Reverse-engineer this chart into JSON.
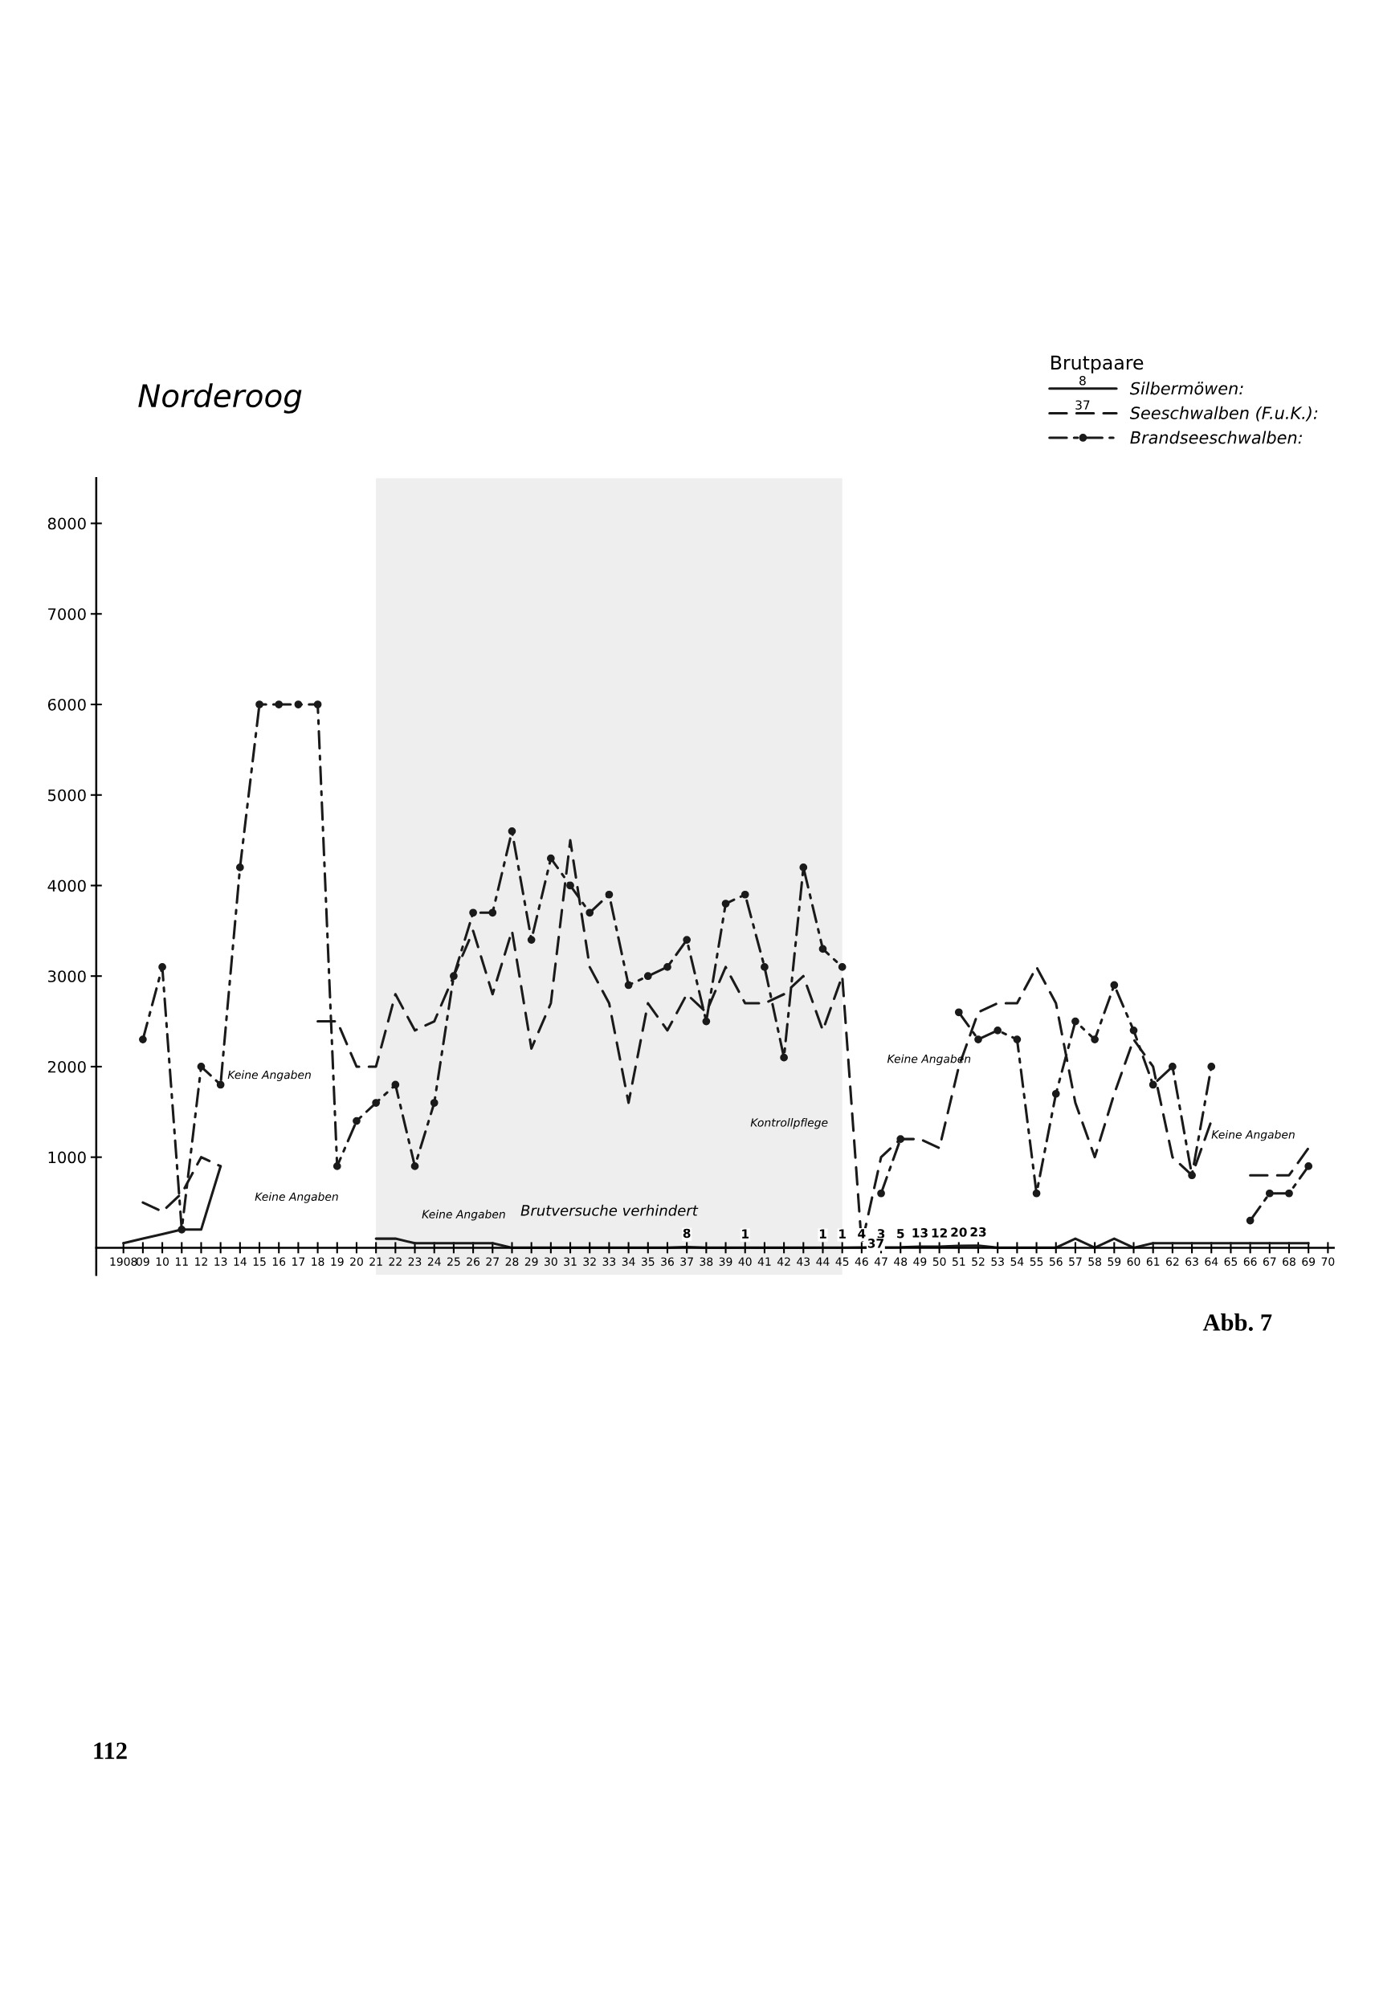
{
  "chart_data": {
    "type": "line",
    "title": "Norderoog",
    "legend_title": "Brutpaare",
    "legend": "top right",
    "x": [
      1908,
      1909,
      1910,
      1911,
      1912,
      1913,
      1914,
      1915,
      1916,
      1917,
      1918,
      1919,
      1920,
      1921,
      1922,
      1923,
      1924,
      1925,
      1926,
      1927,
      1928,
      1929,
      1930,
      1931,
      1932,
      1933,
      1934,
      1935,
      1936,
      1937,
      1938,
      1939,
      1940,
      1941,
      1942,
      1943,
      1944,
      1945,
      1946,
      1947,
      1948,
      1949,
      1950,
      1951,
      1952,
      1953,
      1954,
      1955,
      1956,
      1957,
      1958,
      1959,
      1960,
      1961,
      1962,
      1963,
      1964,
      1965,
      1966,
      1967,
      1968,
      1969
    ],
    "series": [
      {
        "name": "Silbermöwen:",
        "color": "#1a1a1a",
        "line_style": "solid",
        "marker": "none",
        "values": [
          50,
          100,
          150,
          200,
          200,
          900,
          null,
          null,
          null,
          null,
          null,
          null,
          null,
          100,
          100,
          50,
          50,
          50,
          50,
          50,
          0,
          0,
          0,
          0,
          0,
          0,
          0,
          0,
          0,
          8,
          0,
          0,
          1,
          0,
          0,
          0,
          1,
          1,
          4,
          3,
          5,
          13,
          12,
          20,
          23,
          0,
          0,
          0,
          0,
          100,
          0,
          100,
          0,
          50,
          50,
          50,
          50,
          50,
          50,
          50,
          50,
          50
        ],
        "value_labels": [
          null,
          null,
          null,
          null,
          null,
          null,
          null,
          null,
          null,
          null,
          null,
          null,
          null,
          null,
          null,
          null,
          null,
          null,
          null,
          null,
          null,
          null,
          null,
          null,
          null,
          null,
          null,
          null,
          null,
          "8",
          null,
          null,
          "1",
          null,
          null,
          null,
          "1",
          "1",
          "4",
          "3",
          "5",
          "13",
          "12",
          "20",
          "23",
          null,
          null,
          null,
          null,
          null,
          null,
          null,
          null,
          null,
          null,
          null,
          null,
          null,
          null,
          null,
          null,
          null
        ]
      },
      {
        "name": "Seeschwalben (F.u.K.):",
        "color": "#1a1a1a",
        "line_style": "dashed",
        "marker": "none",
        "values": [
          null,
          500,
          400,
          600,
          1000,
          900,
          null,
          null,
          null,
          null,
          2500,
          2500,
          2000,
          2000,
          2800,
          2400,
          2500,
          3000,
          3500,
          2800,
          3500,
          2200,
          2700,
          4500,
          3100,
          2700,
          1600,
          2700,
          2400,
          2800,
          2600,
          3100,
          2700,
          2700,
          2800,
          3000,
          2400,
          3000,
          37,
          1000,
          1200,
          1200,
          1100,
          2000,
          2600,
          2700,
          2700,
          3100,
          2700,
          1600,
          1000,
          1700,
          2300,
          2000,
          1000,
          800,
          1400,
          null,
          800,
          800,
          800,
          1100
        ],
        "value_labels": [
          null,
          null,
          null,
          null,
          null,
          null,
          null,
          null,
          null,
          null,
          null,
          null,
          null,
          null,
          null,
          null,
          null,
          null,
          null,
          null,
          null,
          null,
          null,
          null,
          null,
          null,
          null,
          null,
          null,
          null,
          null,
          null,
          null,
          null,
          null,
          null,
          null,
          null,
          "37",
          null,
          null,
          null,
          null,
          null,
          null,
          null,
          null,
          null,
          null,
          null,
          null,
          null,
          null,
          null,
          null,
          null,
          null,
          null,
          null,
          null,
          null,
          null
        ]
      },
      {
        "name": "Brandseeschwalben:",
        "color": "#1a1a1a",
        "line_style": "dotted",
        "marker": "circle",
        "values": [
          null,
          2300,
          3100,
          200,
          2000,
          1800,
          4200,
          6000,
          6000,
          6000,
          6000,
          900,
          1400,
          1600,
          1800,
          900,
          1600,
          3000,
          3700,
          3700,
          4600,
          3400,
          4300,
          4000,
          3700,
          3900,
          2900,
          3000,
          3100,
          3400,
          2500,
          3800,
          3900,
          3100,
          2100,
          4200,
          3300,
          3100,
          null,
          600,
          1200,
          null,
          null,
          2600,
          2300,
          2400,
          2300,
          600,
          1700,
          2500,
          2300,
          2900,
          2400,
          1800,
          2000,
          800,
          2000,
          null,
          300,
          600,
          600,
          900
        ]
      }
    ],
    "xlim": [
      1906.6,
      1970.3
    ],
    "xticks": [
      {
        "value": 1908,
        "label": "1908"
      },
      {
        "value": 1909,
        "label": "09"
      },
      {
        "value": 1910,
        "label": "10"
      },
      {
        "value": 1911,
        "label": "11"
      },
      {
        "value": 1912,
        "label": "12"
      },
      {
        "value": 1913,
        "label": "13"
      },
      {
        "value": 1914,
        "label": "14"
      },
      {
        "value": 1915,
        "label": "15"
      },
      {
        "value": 1916,
        "label": "16"
      },
      {
        "value": 1917,
        "label": "17"
      },
      {
        "value": 1918,
        "label": "18"
      },
      {
        "value": 1919,
        "label": "19"
      },
      {
        "value": 1920,
        "label": "20"
      },
      {
        "value": 1921,
        "label": "21"
      },
      {
        "value": 1922,
        "label": "22"
      },
      {
        "value": 1923,
        "label": "23"
      },
      {
        "value": 1924,
        "label": "24"
      },
      {
        "value": 1925,
        "label": "25"
      },
      {
        "value": 1926,
        "label": "26"
      },
      {
        "value": 1927,
        "label": "27"
      },
      {
        "value": 1928,
        "label": "28"
      },
      {
        "value": 1929,
        "label": "29"
      },
      {
        "value": 1930,
        "label": "30"
      },
      {
        "value": 1931,
        "label": "31"
      },
      {
        "value": 1932,
        "label": "32"
      },
      {
        "value": 1933,
        "label": "33"
      },
      {
        "value": 1934,
        "label": "34"
      },
      {
        "value": 1935,
        "label": "35"
      },
      {
        "value": 1936,
        "label": "36"
      },
      {
        "value": 1937,
        "label": "37"
      },
      {
        "value": 1938,
        "label": "38"
      },
      {
        "value": 1939,
        "label": "39"
      },
      {
        "value": 1940,
        "label": "40"
      },
      {
        "value": 1941,
        "label": "41"
      },
      {
        "value": 1942,
        "label": "42"
      },
      {
        "value": 1943,
        "label": "43"
      },
      {
        "value": 1944,
        "label": "44"
      },
      {
        "value": 1945,
        "label": "45"
      },
      {
        "value": 1946,
        "label": "46"
      },
      {
        "value": 1947,
        "label": "47"
      },
      {
        "value": 1948,
        "label": "48"
      },
      {
        "value": 1949,
        "label": "49"
      },
      {
        "value": 1950,
        "label": "50"
      },
      {
        "value": 1951,
        "label": "51"
      },
      {
        "value": 1952,
        "label": "52"
      },
      {
        "value": 1953,
        "label": "53"
      },
      {
        "value": 1954,
        "label": "54"
      },
      {
        "value": 1955,
        "label": "55"
      },
      {
        "value": 1956,
        "label": "56"
      },
      {
        "value": 1957,
        "label": "57"
      },
      {
        "value": 1958,
        "label": "58"
      },
      {
        "value": 1959,
        "label": "59"
      },
      {
        "value": 1960,
        "label": "60"
      },
      {
        "value": 1961,
        "label": "61"
      },
      {
        "value": 1962,
        "label": "62"
      },
      {
        "value": 1963,
        "label": "63"
      },
      {
        "value": 1964,
        "label": "64"
      },
      {
        "value": 1965,
        "label": "65"
      },
      {
        "value": 1966,
        "label": "66"
      },
      {
        "value": 1967,
        "label": "67"
      },
      {
        "value": 1968,
        "label": "68"
      },
      {
        "value": 1969,
        "label": "69"
      },
      {
        "value": 1970,
        "label": "70"
      }
    ],
    "ylim": [
      -300,
      8500
    ],
    "yticks": [
      1000,
      2000,
      3000,
      4000,
      5000,
      6000,
      7000,
      8000
    ],
    "bands": [
      {
        "axis": "x",
        "from": 1921,
        "to": 1945,
        "label": "Brutversuche verhindert",
        "color": "#eeeeee"
      }
    ],
    "annotations": [
      "Abb. 7",
      "112",
      "8",
      "37",
      "Keine Angaben",
      "Keine Angaben",
      "Keine Angaben",
      "Kontrollpflege",
      "Keine Angaben",
      "Keine Angaben"
    ]
  }
}
